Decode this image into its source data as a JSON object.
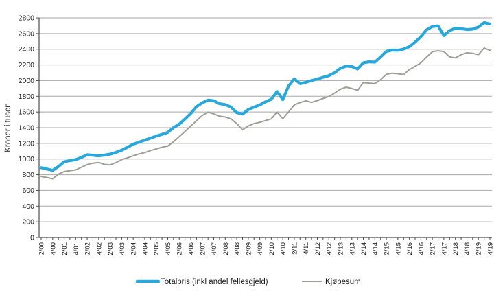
{
  "chart_data": {
    "type": "line",
    "ylabel": "Kroner i tusen",
    "ylim": [
      0,
      2800
    ],
    "ytick_step": 200,
    "grid": true,
    "legend_position": "bottom",
    "colors": {
      "grid": "#a6a6a6",
      "axis": "#4d4d4d",
      "text": "#1a1a1a"
    },
    "y_tick_labels": [
      "0",
      "200",
      "400",
      "600",
      "800",
      "1000",
      "1200",
      "1400",
      "1600",
      "1800",
      "2000",
      "2200",
      "2400",
      "2600",
      "2800"
    ],
    "x_tick_labels": [
      "2/00",
      "4/00",
      "2/01",
      "4/01",
      "2/02",
      "4/02",
      "2/03",
      "4/03",
      "2/04",
      "4/04",
      "2/05",
      "4/05",
      "2/06",
      "4/06",
      "2/07",
      "4/07",
      "2/08",
      "4/08",
      "2/09",
      "4/09",
      "2/10",
      "4/10",
      "2/11",
      "4/11",
      "2/12",
      "4/12",
      "2/13",
      "4/13",
      "2/14",
      "4/14",
      "2/15",
      "4/15",
      "2/16",
      "4/16",
      "2/17",
      "4/17",
      "2/18",
      "4/18",
      "2/19",
      "4/19"
    ],
    "x_quarters_per_label": 2,
    "series": [
      {
        "name": "Totalpris (inkl andel fellesgjeld)",
        "color": "#29a8dc",
        "width": 4.2,
        "values": [
          890,
          872,
          856,
          905,
          965,
          980,
          992,
          1020,
          1055,
          1048,
          1040,
          1050,
          1062,
          1085,
          1112,
          1150,
          1190,
          1215,
          1240,
          1265,
          1292,
          1315,
          1340,
          1400,
          1445,
          1510,
          1582,
          1668,
          1716,
          1752,
          1744,
          1705,
          1694,
          1662,
          1592,
          1572,
          1630,
          1662,
          1690,
          1730,
          1762,
          1862,
          1758,
          1930,
          2022,
          1962,
          1978,
          2000,
          2020,
          2042,
          2062,
          2100,
          2155,
          2185,
          2180,
          2148,
          2226,
          2240,
          2236,
          2300,
          2372,
          2390,
          2386,
          2402,
          2432,
          2490,
          2560,
          2648,
          2690,
          2698,
          2574,
          2636,
          2668,
          2662,
          2650,
          2656,
          2682,
          2740,
          2722
        ]
      },
      {
        "name": "Kjøpesum",
        "color": "#9e9e96",
        "width": 2,
        "values": [
          778,
          765,
          748,
          808,
          840,
          852,
          862,
          895,
          930,
          948,
          956,
          932,
          926,
          955,
          992,
          1015,
          1042,
          1065,
          1082,
          1108,
          1130,
          1150,
          1165,
          1220,
          1285,
          1352,
          1420,
          1488,
          1556,
          1598,
          1576,
          1546,
          1536,
          1512,
          1452,
          1372,
          1422,
          1452,
          1468,
          1490,
          1512,
          1600,
          1515,
          1600,
          1690,
          1720,
          1742,
          1722,
          1746,
          1772,
          1796,
          1840,
          1890,
          1916,
          1900,
          1876,
          1975,
          1968,
          1962,
          2012,
          2080,
          2094,
          2088,
          2076,
          2140,
          2182,
          2226,
          2300,
          2368,
          2380,
          2370,
          2302,
          2290,
          2330,
          2354,
          2348,
          2330,
          2415,
          2386
        ]
      }
    ]
  }
}
